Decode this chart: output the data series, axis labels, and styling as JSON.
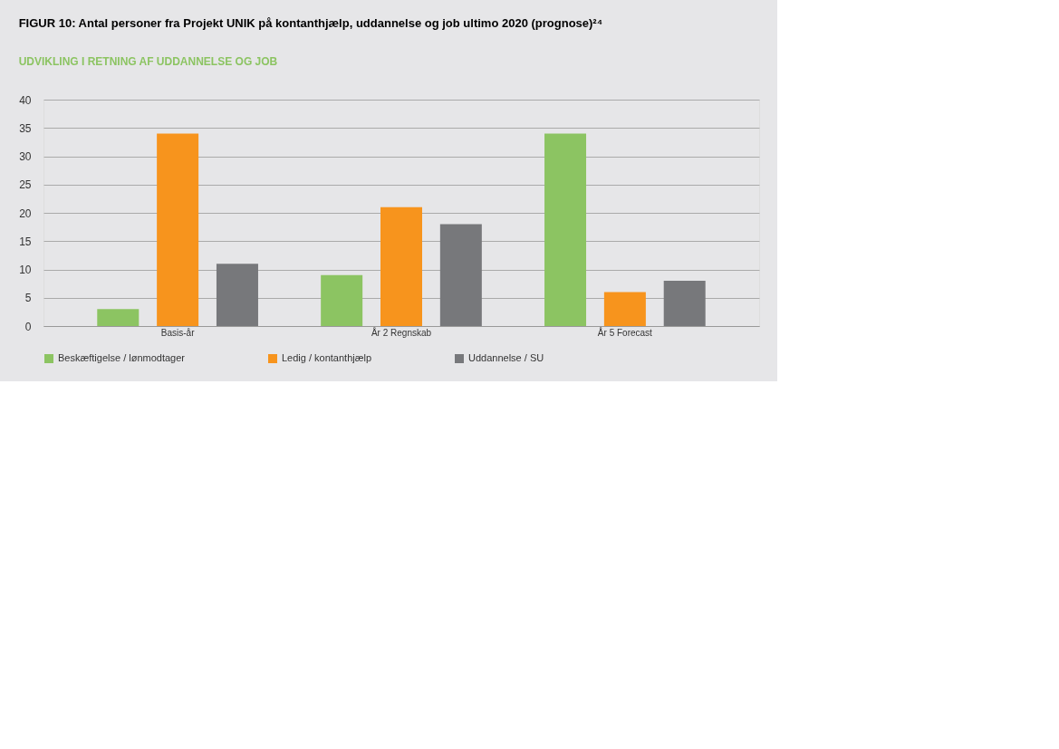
{
  "chart_data": {
    "type": "bar",
    "title": "FIGUR 10: Antal personer fra Projekt UNIK på kontanthjælp, uddannelse og job ultimo 2020 (prognose)²⁴",
    "subtitle": "UDVIKLING I RETNING AF UDDANNELSE OG JOB",
    "categories": [
      "Basis-år",
      "År 2 Regnskab",
      "År 5 Forecast"
    ],
    "series": [
      {
        "name": "Beskæftigelse / lønmodtager",
        "color": "#8cc462",
        "values": [
          3,
          9,
          34
        ]
      },
      {
        "name": "Ledig / kontanthjælp",
        "color": "#f7941d",
        "values": [
          34,
          21,
          6
        ]
      },
      {
        "name": "Uddannelse / SU",
        "color": "#77787b",
        "values": [
          11,
          18,
          8
        ]
      }
    ],
    "ylim": [
      0,
      40
    ],
    "yticks": [
      0,
      5,
      10,
      15,
      20,
      25,
      30,
      35,
      40
    ],
    "grid": "y",
    "legend": "bottom"
  }
}
